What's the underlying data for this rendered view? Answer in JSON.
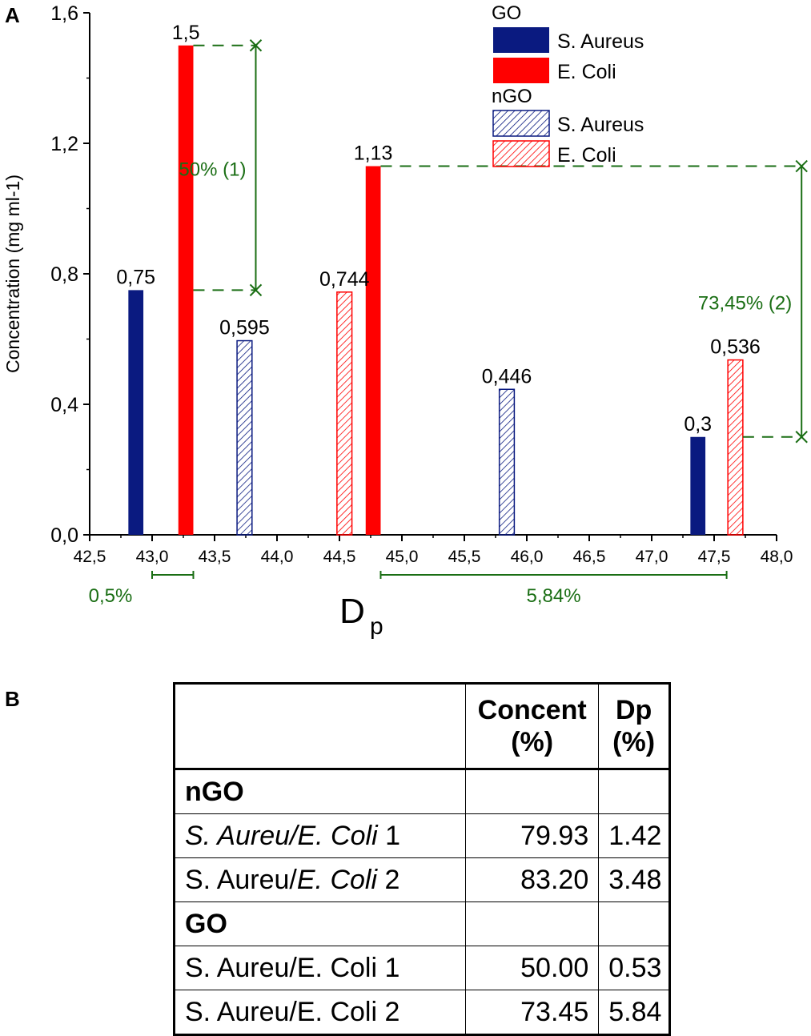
{
  "panel_labels": {
    "a": "A",
    "b": "B"
  },
  "chart_data": {
    "type": "bar",
    "title": "",
    "xlabel": "D",
    "xlabel_subscript": "p",
    "ylabel": "Concentration (mg ml-1)",
    "xlim": [
      42.5,
      48.0
    ],
    "ylim": [
      0.0,
      1.6
    ],
    "xticks": [
      "42,5",
      "43,0",
      "43,5",
      "44,0",
      "44,5",
      "45,0",
      "45,5",
      "46,0",
      "46,5",
      "47,0",
      "47,5",
      "48,0"
    ],
    "yticks": [
      "0,0",
      "0,4",
      "0,8",
      "1,2",
      "1,6"
    ],
    "xtick_values": [
      42.5,
      43.0,
      43.5,
      44.0,
      44.5,
      45.0,
      45.5,
      46.0,
      46.5,
      47.0,
      47.5,
      48.0
    ],
    "ytick_values": [
      0.0,
      0.4,
      0.8,
      1.2,
      1.6
    ],
    "bar_width": 0.12,
    "legend_position": "top-right",
    "legend": [
      {
        "group": "GO",
        "entries": [
          {
            "name": "S. Aureus",
            "style": "solid",
            "color": "#0a1a80"
          },
          {
            "name": "E. Coli",
            "style": "solid",
            "color": "#ff0000"
          }
        ]
      },
      {
        "group": "nGO",
        "entries": [
          {
            "name": "S. Aureus",
            "style": "hatched",
            "color": "#0a1a80"
          },
          {
            "name": "E. Coli",
            "style": "hatched",
            "color": "#ff0000"
          }
        ]
      }
    ],
    "series": [
      {
        "name": "GO S. Aureus",
        "style": "solid",
        "color": "#0a1a80",
        "points": [
          {
            "x": 42.87,
            "y": 0.75,
            "label": "0,75"
          },
          {
            "x": 47.37,
            "y": 0.3,
            "label": "0,3"
          }
        ]
      },
      {
        "name": "GO E. Coli",
        "style": "solid",
        "color": "#ff0000",
        "points": [
          {
            "x": 43.27,
            "y": 1.5,
            "label": "1,5"
          },
          {
            "x": 44.77,
            "y": 1.13,
            "label": "1,13"
          }
        ]
      },
      {
        "name": "nGO S. Aureus",
        "style": "hatched",
        "color": "#0a1a80",
        "points": [
          {
            "x": 43.74,
            "y": 0.595,
            "label": "0,595"
          },
          {
            "x": 45.84,
            "y": 0.446,
            "label": "0,446"
          }
        ]
      },
      {
        "name": "nGO E. Coli",
        "style": "hatched",
        "color": "#ff0000",
        "points": [
          {
            "x": 44.54,
            "y": 0.744,
            "label": "0,744"
          },
          {
            "x": 47.67,
            "y": 0.536,
            "label": "0,536"
          }
        ]
      }
    ],
    "annotations": {
      "color": "#1a6e14",
      "vertical": [
        {
          "label": "50% (1)",
          "y_top": 1.5,
          "y_bottom": 0.75,
          "x_line": 43.83,
          "x_from_top": 43.33,
          "x_from_bottom": 43.33,
          "label_side": "left"
        },
        {
          "label": "73,45% (2)",
          "y_top": 1.13,
          "y_bottom": 0.3,
          "x_line": 48.2,
          "x_from_top": 44.83,
          "x_from_bottom": 47.73,
          "label_side": "left"
        }
      ],
      "horizontal": [
        {
          "label": "0,5%",
          "x_from": 43.0,
          "x_to": 43.33
        },
        {
          "label": "5,84%",
          "x_from": 44.83,
          "x_to": 47.6
        }
      ]
    }
  },
  "table": {
    "headers": [
      "",
      "Concent (%)",
      "Dp (%)"
    ],
    "groups": [
      {
        "name": "nGO",
        "rows": [
          {
            "label_italic": "S. Aureu/E. Coli",
            "label_suffix": " 1",
            "concent": "79.93",
            "dp": "1.42"
          },
          {
            "label_plain": "S. Aureu/",
            "label_italic": "E. Coli",
            "label_suffix": " 2",
            "concent": "83.20",
            "dp": "3.48"
          }
        ]
      },
      {
        "name": "GO",
        "rows": [
          {
            "label_plain": "S. Aureu/E. Coli",
            "label_suffix": " 1",
            "concent": "50.00",
            "dp": "0.53"
          },
          {
            "label_plain": "S. Aureu/E. Coli",
            "label_suffix": " 2",
            "concent": "73.45",
            "dp": "5.84"
          }
        ]
      }
    ]
  }
}
